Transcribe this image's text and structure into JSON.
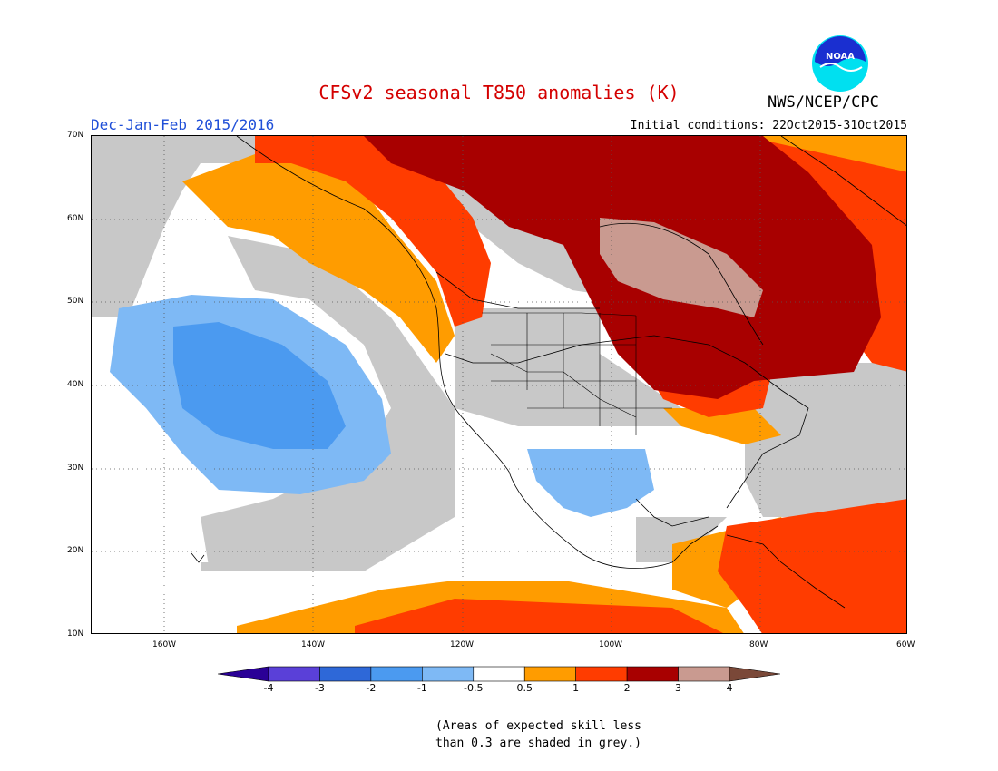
{
  "title": "CFSv2 seasonal T850 anomalies (K)",
  "season": "Dec-Jan-Feb 2015/2016",
  "initial_conditions": "Initial conditions: 22Oct2015-31Oct2015",
  "agency": "NWS/NCEP/CPC",
  "logo_text": "NOAA",
  "lat_labels": [
    "70N",
    "60N",
    "50N",
    "40N",
    "30N",
    "20N",
    "10N"
  ],
  "lon_labels": [
    "160W",
    "140W",
    "120W",
    "100W",
    "80W",
    "60W"
  ],
  "colorbar": {
    "labels": [
      "-4",
      "-3",
      "-2",
      "-1",
      "-0.5",
      "0.5",
      "1",
      "2",
      "3",
      "4"
    ],
    "colors": [
      "#2a0096",
      "#5a40d8",
      "#2e68d8",
      "#4b9af0",
      "#7eb9f5",
      "#ffffff",
      "#ff9c00",
      "#ff3c00",
      "#a80000",
      "#c99a90",
      "#7a4838"
    ]
  },
  "colors": {
    "grey_skill": "#c8c8c8",
    "orange": "#ff9c00",
    "red_orange": "#ff3c00",
    "dark_red": "#a80000",
    "tan": "#c99a90",
    "light_blue": "#7eb9f5",
    "mid_blue": "#4b9af0",
    "blue": "#2e68d8"
  },
  "note_line1": "(Areas of expected skill less",
  "note_line2": "than 0.3 are shaded in grey.)"
}
